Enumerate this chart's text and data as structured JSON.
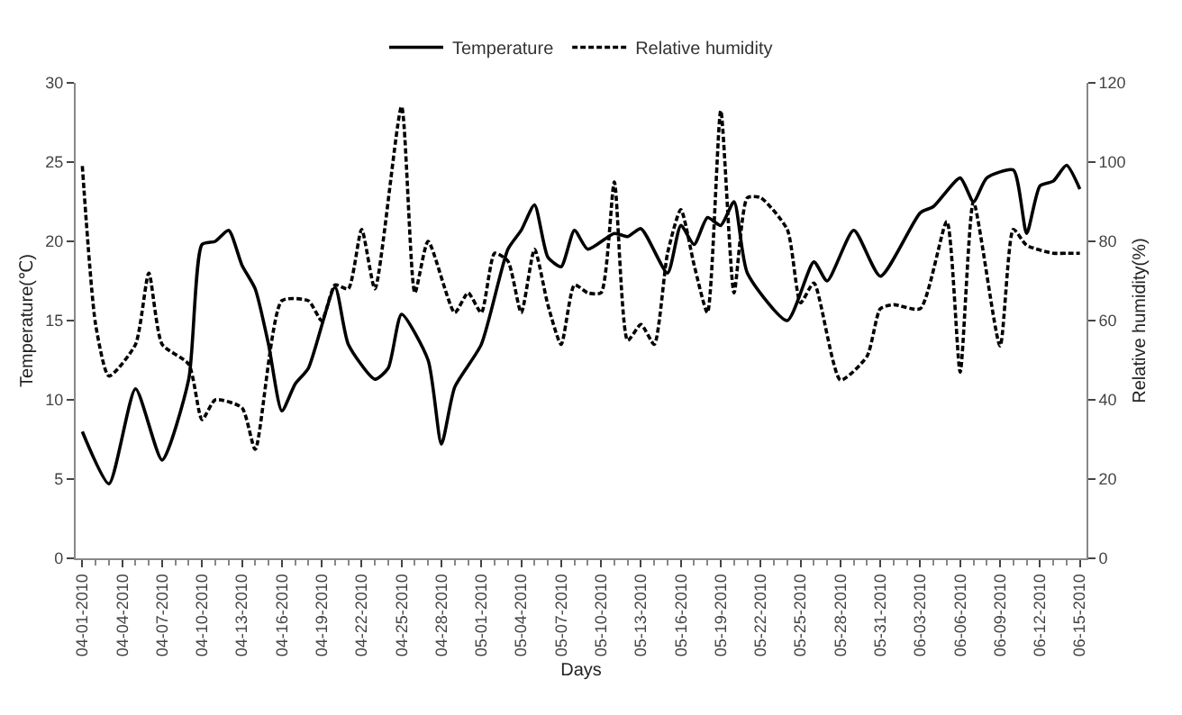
{
  "chart_data": {
    "type": "line",
    "xlabel": "Days",
    "ylabel": "Temperature(℃)",
    "y2label": "Relative humidity(%)",
    "xlim": [
      "2010-03-31T12:00",
      "2010-06-15T12:00"
    ],
    "xticks": [
      {
        "value": "2010-04-01",
        "label": "04-01-2010"
      },
      {
        "value": "2010-04-04",
        "label": "04-04-2010"
      },
      {
        "value": "2010-04-07",
        "label": "04-07-2010"
      },
      {
        "value": "2010-04-10",
        "label": "04-10-2010"
      },
      {
        "value": "2010-04-13",
        "label": "04-13-2010"
      },
      {
        "value": "2010-04-16",
        "label": "04-16-2010"
      },
      {
        "value": "2010-04-19",
        "label": "04-19-2010"
      },
      {
        "value": "2010-04-22",
        "label": "04-22-2010"
      },
      {
        "value": "2010-04-25",
        "label": "04-25-2010"
      },
      {
        "value": "2010-04-28",
        "label": "04-28-2010"
      },
      {
        "value": "2010-05-01",
        "label": "05-01-2010"
      },
      {
        "value": "2010-05-04",
        "label": "05-04-2010"
      },
      {
        "value": "2010-05-07",
        "label": "05-07-2010"
      },
      {
        "value": "2010-05-10",
        "label": "05-10-2010"
      },
      {
        "value": "2010-05-13",
        "label": "05-13-2010"
      },
      {
        "value": "2010-05-16",
        "label": "05-16-2010"
      },
      {
        "value": "2010-05-19",
        "label": "05-19-2010"
      },
      {
        "value": "2010-05-22",
        "label": "05-22-2010"
      },
      {
        "value": "2010-05-25",
        "label": "05-25-2010"
      },
      {
        "value": "2010-05-28",
        "label": "05-28-2010"
      },
      {
        "value": "2010-05-31",
        "label": "05-31-2010"
      },
      {
        "value": "2010-06-03",
        "label": "06-03-2010"
      },
      {
        "value": "2010-06-06",
        "label": "06-06-2010"
      },
      {
        "value": "2010-06-09",
        "label": "06-09-2010"
      },
      {
        "value": "2010-06-12",
        "label": "06-12-2010"
      },
      {
        "value": "2010-06-15",
        "label": "06-15-2010"
      }
    ],
    "ylim": [
      0,
      30
    ],
    "yticks": [
      0,
      5,
      10,
      15,
      20,
      25,
      30
    ],
    "y2lim": [
      0,
      120
    ],
    "y2ticks": [
      0,
      20,
      40,
      60,
      80,
      100,
      120
    ],
    "grid": false,
    "legend": "top",
    "marker": "none",
    "series": [
      {
        "name": "Temperature",
        "color": "#000000",
        "line_style": "solid",
        "x": [
          "2010-04-01",
          "2010-04-03",
          "2010-04-05",
          "2010-04-07",
          "2010-04-09",
          "2010-04-10",
          "2010-04-11",
          "2010-04-12",
          "2010-04-13",
          "2010-04-14",
          "2010-04-15",
          "2010-04-16",
          "2010-04-17",
          "2010-04-18",
          "2010-04-20",
          "2010-04-21",
          "2010-04-23",
          "2010-04-24",
          "2010-04-25",
          "2010-04-27",
          "2010-04-28",
          "2010-04-29",
          "2010-05-01",
          "2010-05-03",
          "2010-05-04",
          "2010-05-05",
          "2010-05-06",
          "2010-05-07",
          "2010-05-08",
          "2010-05-09",
          "2010-05-11",
          "2010-05-12",
          "2010-05-13",
          "2010-05-15",
          "2010-05-16",
          "2010-05-17",
          "2010-05-18",
          "2010-05-19",
          "2010-05-20",
          "2010-05-21",
          "2010-05-24",
          "2010-05-26",
          "2010-05-27",
          "2010-05-29",
          "2010-05-31",
          "2010-06-03",
          "2010-06-04",
          "2010-06-06",
          "2010-06-07",
          "2010-06-08",
          "2010-06-10",
          "2010-06-11",
          "2010-06-12",
          "2010-06-13",
          "2010-06-14",
          "2010-06-15"
        ],
        "values": [
          8,
          4.7,
          10.7,
          6.2,
          11.3,
          19.8,
          20,
          20.7,
          18.5,
          17,
          13.5,
          9.3,
          11,
          12,
          17.1,
          13.5,
          11.3,
          12,
          15.4,
          12.5,
          7.2,
          10.8,
          13.5,
          19.5,
          20.7,
          22.3,
          19,
          18.4,
          20.7,
          19.5,
          20.5,
          20.3,
          20.8,
          18,
          21,
          19.8,
          21.5,
          21,
          22.5,
          18,
          15,
          18.7,
          17.5,
          20.7,
          17.8,
          21.8,
          22.2,
          24,
          22.5,
          24,
          24.5,
          20.5,
          23.5,
          23.8,
          24.8,
          23.3
        ]
      },
      {
        "name": "Relative humidity",
        "color": "#000000",
        "line_style": "dashed",
        "axis": "y2",
        "x": [
          "2010-04-01",
          "2010-04-02",
          "2010-04-03",
          "2010-04-05",
          "2010-04-06",
          "2010-04-07",
          "2010-04-09",
          "2010-04-10",
          "2010-04-11",
          "2010-04-13",
          "2010-04-14",
          "2010-04-16",
          "2010-04-18",
          "2010-04-19",
          "2010-04-20",
          "2010-04-21",
          "2010-04-22",
          "2010-04-23",
          "2010-04-25",
          "2010-04-26",
          "2010-04-27",
          "2010-04-29",
          "2010-04-30",
          "2010-05-01",
          "2010-05-02",
          "2010-05-03",
          "2010-05-04",
          "2010-05-05",
          "2010-05-06",
          "2010-05-07",
          "2010-05-08",
          "2010-05-09",
          "2010-05-10",
          "2010-05-11",
          "2010-05-12",
          "2010-05-13",
          "2010-05-14",
          "2010-05-15",
          "2010-05-16",
          "2010-05-17",
          "2010-05-18",
          "2010-05-19",
          "2010-05-20",
          "2010-05-21",
          "2010-05-22",
          "2010-05-24",
          "2010-05-25",
          "2010-05-26",
          "2010-05-28",
          "2010-05-30",
          "2010-05-31",
          "2010-06-01",
          "2010-06-03",
          "2010-06-05",
          "2010-06-06",
          "2010-06-07",
          "2010-06-09",
          "2010-06-10",
          "2010-06-11",
          "2010-06-13",
          "2010-06-14",
          "2010-06-15"
        ],
        "values": [
          99,
          59,
          46,
          54,
          72,
          54,
          49,
          35,
          40,
          38,
          27.5,
          65,
          65,
          60,
          69,
          68,
          83,
          68,
          114,
          67,
          80,
          62,
          67,
          62,
          77,
          75,
          62,
          78,
          64,
          54,
          69,
          67,
          67,
          95,
          55,
          59,
          54,
          77,
          88,
          74,
          62,
          113,
          67,
          91,
          91,
          83,
          64.5,
          69.5,
          45,
          51,
          63,
          64,
          63,
          85,
          47,
          90,
          53.6,
          83,
          79,
          77,
          77,
          77
        ]
      }
    ]
  }
}
